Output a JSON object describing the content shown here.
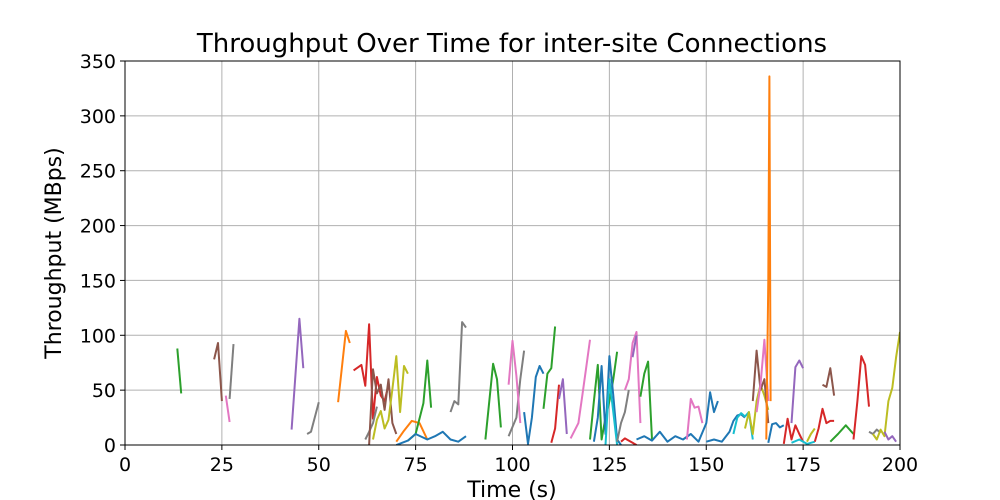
{
  "chart_data": {
    "type": "line",
    "title": "Throughput Over Time for inter-site Connections",
    "xlabel": "Time (s)",
    "ylabel": "Throughput (MBps)",
    "xlim": [
      0,
      200
    ],
    "ylim": [
      0,
      350
    ],
    "xticks": [
      0,
      25,
      50,
      75,
      100,
      125,
      150,
      175,
      200
    ],
    "yticks": [
      0,
      50,
      100,
      150,
      200,
      250,
      300,
      350
    ],
    "grid": true,
    "legend": "none",
    "colors": [
      "#1f77b4",
      "#ff7f0e",
      "#2ca02c",
      "#d62728",
      "#9467bd",
      "#8c564b",
      "#e377c2",
      "#7f7f7f",
      "#bcbd22",
      "#17becf"
    ],
    "series": [
      {
        "color": "#2ca02c",
        "x": [
          13.5,
          14.5
        ],
        "y": [
          88,
          47
        ]
      },
      {
        "color": "#8c564b",
        "x": [
          23,
          24,
          25
        ],
        "y": [
          78,
          93,
          40
        ]
      },
      {
        "color": "#e377c2",
        "x": [
          26,
          27
        ],
        "y": [
          45,
          21
        ]
      },
      {
        "color": "#7f7f7f",
        "x": [
          27,
          28
        ],
        "y": [
          42,
          92
        ]
      },
      {
        "color": "#9467bd",
        "x": [
          43,
          45,
          46
        ],
        "y": [
          14,
          115,
          70
        ]
      },
      {
        "color": "#7f7f7f",
        "x": [
          47,
          48,
          50
        ],
        "y": [
          10,
          12,
          39
        ]
      },
      {
        "color": "#ff7f0e",
        "x": [
          55,
          57,
          58
        ],
        "y": [
          39,
          104,
          93
        ]
      },
      {
        "color": "#d62728",
        "x": [
          59,
          61,
          62,
          63,
          64,
          65,
          66,
          67,
          68
        ],
        "y": [
          68,
          73,
          54,
          110,
          24,
          62,
          45,
          40,
          55
        ]
      },
      {
        "color": "#7f7f7f",
        "x": [
          62,
          63,
          64,
          65
        ],
        "y": [
          5,
          12,
          20,
          35
        ]
      },
      {
        "color": "#8c564b",
        "x": [
          63,
          64,
          65,
          66,
          67,
          68,
          69,
          70
        ],
        "y": [
          0,
          69,
          47,
          55,
          32,
          60,
          20,
          10
        ]
      },
      {
        "color": "#bcbd22",
        "x": [
          64,
          65,
          66,
          67,
          68,
          69,
          70,
          71,
          72,
          73
        ],
        "y": [
          5,
          23,
          31,
          15,
          23,
          51,
          81,
          30,
          72,
          65
        ]
      },
      {
        "color": "#ff7f0e",
        "x": [
          70,
          72,
          74,
          76,
          78
        ],
        "y": [
          3,
          13,
          22,
          20,
          5
        ]
      },
      {
        "color": "#2ca02c",
        "x": [
          73,
          75,
          77,
          78,
          79
        ],
        "y": [
          4,
          10,
          38,
          77,
          34
        ]
      },
      {
        "color": "#1f77b4",
        "x": [
          70,
          73,
          75,
          78,
          80,
          82,
          84,
          86,
          88
        ],
        "y": [
          0,
          4,
          10,
          5,
          8,
          12,
          5,
          3,
          8
        ]
      },
      {
        "color": "#7f7f7f",
        "x": [
          84,
          85,
          86,
          87,
          88
        ],
        "y": [
          30,
          40,
          37,
          112,
          107
        ]
      },
      {
        "color": "#2ca02c",
        "x": [
          93,
          95,
          96,
          97
        ],
        "y": [
          5,
          74,
          60,
          16
        ]
      },
      {
        "color": "#7f7f7f",
        "x": [
          99,
          101,
          102,
          103
        ],
        "y": [
          8,
          25,
          60,
          86
        ]
      },
      {
        "color": "#e377c2",
        "x": [
          99,
          100,
          101,
          102
        ],
        "y": [
          55,
          95,
          63,
          20
        ]
      },
      {
        "color": "#1f77b4",
        "x": [
          103,
          104,
          105,
          106,
          107,
          108
        ],
        "y": [
          30,
          1,
          25,
          62,
          72,
          65
        ]
      },
      {
        "color": "#2ca02c",
        "x": [
          108,
          109,
          110,
          111
        ],
        "y": [
          33,
          65,
          70,
          108
        ]
      },
      {
        "color": "#d62728",
        "x": [
          110,
          111,
          112
        ],
        "y": [
          2,
          15,
          55
        ]
      },
      {
        "color": "#9467bd",
        "x": [
          112,
          113,
          114
        ],
        "y": [
          42,
          60,
          10
        ]
      },
      {
        "color": "#e377c2",
        "x": [
          115,
          117,
          118,
          119,
          120
        ],
        "y": [
          6,
          20,
          45,
          70,
          96
        ]
      },
      {
        "color": "#2ca02c",
        "x": [
          120,
          121,
          122,
          123,
          124,
          125,
          126,
          127
        ],
        "y": [
          5,
          40,
          73,
          5,
          25,
          40,
          60,
          85
        ]
      },
      {
        "color": "#1f77b4",
        "x": [
          121,
          122,
          123,
          124,
          125,
          126,
          127,
          128
        ],
        "y": [
          3,
          25,
          72,
          10,
          81,
          45,
          5,
          0
        ]
      },
      {
        "color": "#17becf",
        "x": [
          124,
          125,
          126,
          127
        ],
        "y": [
          0,
          60,
          30,
          0
        ]
      },
      {
        "color": "#7f7f7f",
        "x": [
          127,
          128,
          129,
          130
        ],
        "y": [
          3,
          20,
          30,
          50
        ]
      },
      {
        "color": "#e377c2",
        "x": [
          129,
          130,
          131,
          132,
          133
        ],
        "y": [
          50,
          60,
          93,
          103,
          20
        ]
      },
      {
        "color": "#d62728",
        "x": [
          128,
          129,
          130,
          131,
          132
        ],
        "y": [
          3,
          6,
          4,
          2,
          0
        ]
      },
      {
        "color": "#9467bd",
        "x": [
          131,
          132
        ],
        "y": [
          80,
          100
        ]
      },
      {
        "color": "#2ca02c",
        "x": [
          133,
          134,
          135,
          136
        ],
        "y": [
          44,
          65,
          76,
          5
        ]
      },
      {
        "color": "#1f77b4",
        "x": [
          132,
          134,
          136,
          138,
          140,
          142,
          144,
          146,
          148,
          150,
          151,
          152,
          153
        ],
        "y": [
          5,
          8,
          4,
          12,
          3,
          8,
          5,
          10,
          3,
          20,
          48,
          30,
          40
        ]
      },
      {
        "color": "#e377c2",
        "x": [
          145,
          146,
          147,
          148,
          149
        ],
        "y": [
          5,
          42,
          34,
          35,
          20
        ]
      },
      {
        "color": "#1f77b4",
        "x": [
          150,
          152,
          154,
          156,
          157,
          158,
          159,
          160
        ],
        "y": [
          3,
          5,
          3,
          12,
          22,
          27,
          28,
          25
        ]
      },
      {
        "color": "#17becf",
        "x": [
          157,
          158,
          159,
          160,
          161,
          162
        ],
        "y": [
          10,
          25,
          29,
          26,
          30,
          5
        ]
      },
      {
        "color": "#bcbd22",
        "x": [
          160,
          161,
          162,
          163,
          164,
          165,
          166
        ],
        "y": [
          15,
          30,
          10,
          40,
          55,
          45,
          32
        ]
      },
      {
        "color": "#8c564b",
        "x": [
          162,
          163,
          164,
          165,
          166
        ],
        "y": [
          40,
          86,
          50,
          60,
          20
        ]
      },
      {
        "color": "#e377c2",
        "x": [
          163,
          164,
          165,
          166
        ],
        "y": [
          30,
          55,
          96,
          40
        ]
      },
      {
        "color": "#ff7f0e",
        "x": [
          165.5,
          166,
          166.3,
          166.6
        ],
        "y": [
          5,
          150,
          336,
          40
        ]
      },
      {
        "color": "#1f77b4",
        "x": [
          166,
          167,
          168,
          169,
          170
        ],
        "y": [
          2,
          19,
          20,
          16,
          18
        ]
      },
      {
        "color": "#d62728",
        "x": [
          170,
          171,
          172,
          173,
          174,
          175
        ],
        "y": [
          1,
          24,
          5,
          18,
          10,
          3
        ]
      },
      {
        "color": "#9467bd",
        "x": [
          172,
          173,
          174,
          175
        ],
        "y": [
          20,
          71,
          77,
          70
        ]
      },
      {
        "color": "#17becf",
        "x": [
          172,
          174,
          176,
          178
        ],
        "y": [
          2,
          5,
          1,
          3
        ]
      },
      {
        "color": "#bcbd22",
        "x": [
          176,
          177,
          178
        ],
        "y": [
          3,
          10,
          15
        ]
      },
      {
        "color": "#d62728",
        "x": [
          178,
          179,
          180,
          181,
          182,
          183
        ],
        "y": [
          3,
          15,
          33,
          20,
          22,
          22
        ]
      },
      {
        "color": "#8c564b",
        "x": [
          180,
          181,
          182,
          183
        ],
        "y": [
          55,
          53,
          70,
          45
        ]
      },
      {
        "color": "#2ca02c",
        "x": [
          182,
          184,
          186,
          188
        ],
        "y": [
          3,
          10,
          18,
          10
        ]
      },
      {
        "color": "#d62728",
        "x": [
          188,
          189,
          190,
          191,
          192
        ],
        "y": [
          5,
          40,
          81,
          73,
          35
        ]
      },
      {
        "color": "#7f7f7f",
        "x": [
          192,
          193,
          194,
          195
        ],
        "y": [
          12,
          10,
          14,
          11
        ]
      },
      {
        "color": "#bcbd22",
        "x": [
          193,
          194,
          195,
          196,
          197,
          198,
          199,
          200
        ],
        "y": [
          10,
          5,
          14,
          8,
          40,
          52,
          80,
          103
        ]
      },
      {
        "color": "#9467bd",
        "x": [
          196,
          197,
          198,
          199
        ],
        "y": [
          12,
          5,
          8,
          3
        ]
      }
    ]
  }
}
